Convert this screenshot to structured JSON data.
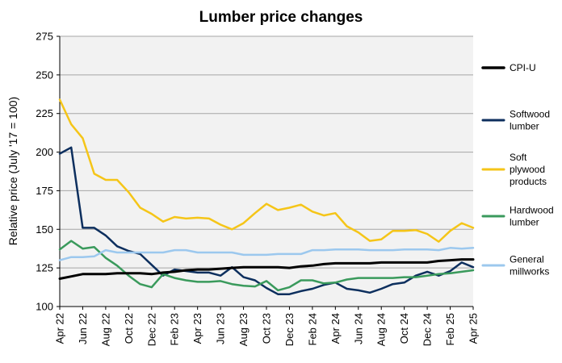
{
  "chart_data": {
    "type": "line",
    "title": "Lumber price changes",
    "xlabel": "",
    "ylabel": "Relative price (July '17 = 100)",
    "ylim": [
      100,
      275
    ],
    "yticks": [
      100,
      125,
      150,
      175,
      200,
      225,
      250,
      275
    ],
    "grid": true,
    "legend": "right",
    "x": [
      "Apr 22",
      "May 22",
      "Jun 22",
      "Jul 22",
      "Aug 22",
      "Sep 22",
      "Oct 22",
      "Nov 22",
      "Dec 22",
      "Jan 23",
      "Feb 23",
      "Mar 23",
      "Apr 23",
      "May 23",
      "Jun 23",
      "Jul 23",
      "Aug 23",
      "Sep 23",
      "Oct 23",
      "Nov 23",
      "Dec 23",
      "Jan 24",
      "Feb 24",
      "Mar 24",
      "Apr 24",
      "May 24",
      "Jun 24",
      "Jul 24",
      "Aug 24",
      "Sep 24",
      "Oct 24",
      "Nov 24",
      "Dec 24",
      "Jan 25",
      "Feb 25",
      "Mar 25",
      "Apr 25"
    ],
    "xtick_labels": [
      "Apr 22",
      "Jun 22",
      "Aug 22",
      "Oct 22",
      "Dec 22",
      "Feb 23",
      "Apr 23",
      "Jun 23",
      "Aug 23",
      "Oct 23",
      "Dec 23",
      "Feb 24",
      "Apr 24",
      "Jun 24",
      "Aug 24",
      "Oct 24",
      "Dec 24",
      "Feb 25",
      "Apr 25"
    ],
    "series": [
      {
        "name": "CPI-U",
        "color": "#000000",
        "width": 3,
        "values": [
          118,
          119.5,
          121,
          121,
          121,
          121.5,
          121.5,
          121.5,
          121,
          122,
          122.5,
          123.5,
          124,
          124,
          124.5,
          125,
          125.5,
          125.5,
          125.5,
          125.5,
          125,
          126,
          126.5,
          127.5,
          128,
          128,
          128,
          128,
          128.5,
          128.5,
          128.5,
          128.5,
          128.5,
          129.5,
          130,
          130.5,
          130.5
        ]
      },
      {
        "name": "Softwood lumber",
        "color": "#0d2f5e",
        "width": 2.5,
        "values": [
          199,
          203,
          151,
          151,
          146,
          139,
          136,
          134,
          127,
          120,
          124,
          123,
          122,
          122,
          120,
          125.5,
          119,
          117,
          112,
          108,
          108,
          110,
          111.5,
          114,
          115.5,
          111.5,
          110.5,
          109,
          111.5,
          114.5,
          115.5,
          120,
          122.5,
          120,
          123,
          128.5,
          125.5
        ]
      },
      {
        "name": "Soft plywood products",
        "color": "#f5c518",
        "width": 2.5,
        "values": [
          234,
          218,
          209,
          186,
          182,
          182,
          174,
          164,
          160,
          155,
          158,
          157,
          157.5,
          157,
          153,
          150,
          154,
          160.5,
          166.5,
          162.5,
          164,
          166,
          161.5,
          159,
          160.5,
          152,
          148,
          142.5,
          143.5,
          149,
          149,
          149.5,
          147,
          142,
          149,
          154,
          151
        ]
      },
      {
        "name": "Hardwood lumber",
        "color": "#3a9a5c",
        "width": 2.5,
        "values": [
          137,
          142.5,
          137.5,
          138.5,
          131.5,
          126.5,
          120,
          114.5,
          112.5,
          121,
          118.5,
          117,
          116,
          116,
          116.5,
          114.5,
          113.5,
          113,
          116.5,
          110.5,
          112.5,
          117,
          117,
          115,
          115.5,
          117.5,
          118.5,
          118.5,
          118.5,
          118.5,
          119,
          119,
          120,
          121,
          121.5,
          122.5,
          123.5
        ]
      },
      {
        "name": "General millworks",
        "color": "#9cc8ee",
        "width": 2.5,
        "values": [
          130,
          132,
          132,
          132.5,
          136.5,
          135,
          135,
          135,
          135,
          135,
          136.5,
          136.5,
          135,
          135,
          135,
          135,
          133.5,
          133.5,
          133.5,
          134,
          134,
          134,
          136.5,
          136.5,
          137,
          137,
          137,
          136.5,
          136.5,
          136.5,
          137,
          137,
          137,
          136.5,
          138,
          137.5,
          138
        ]
      }
    ]
  }
}
